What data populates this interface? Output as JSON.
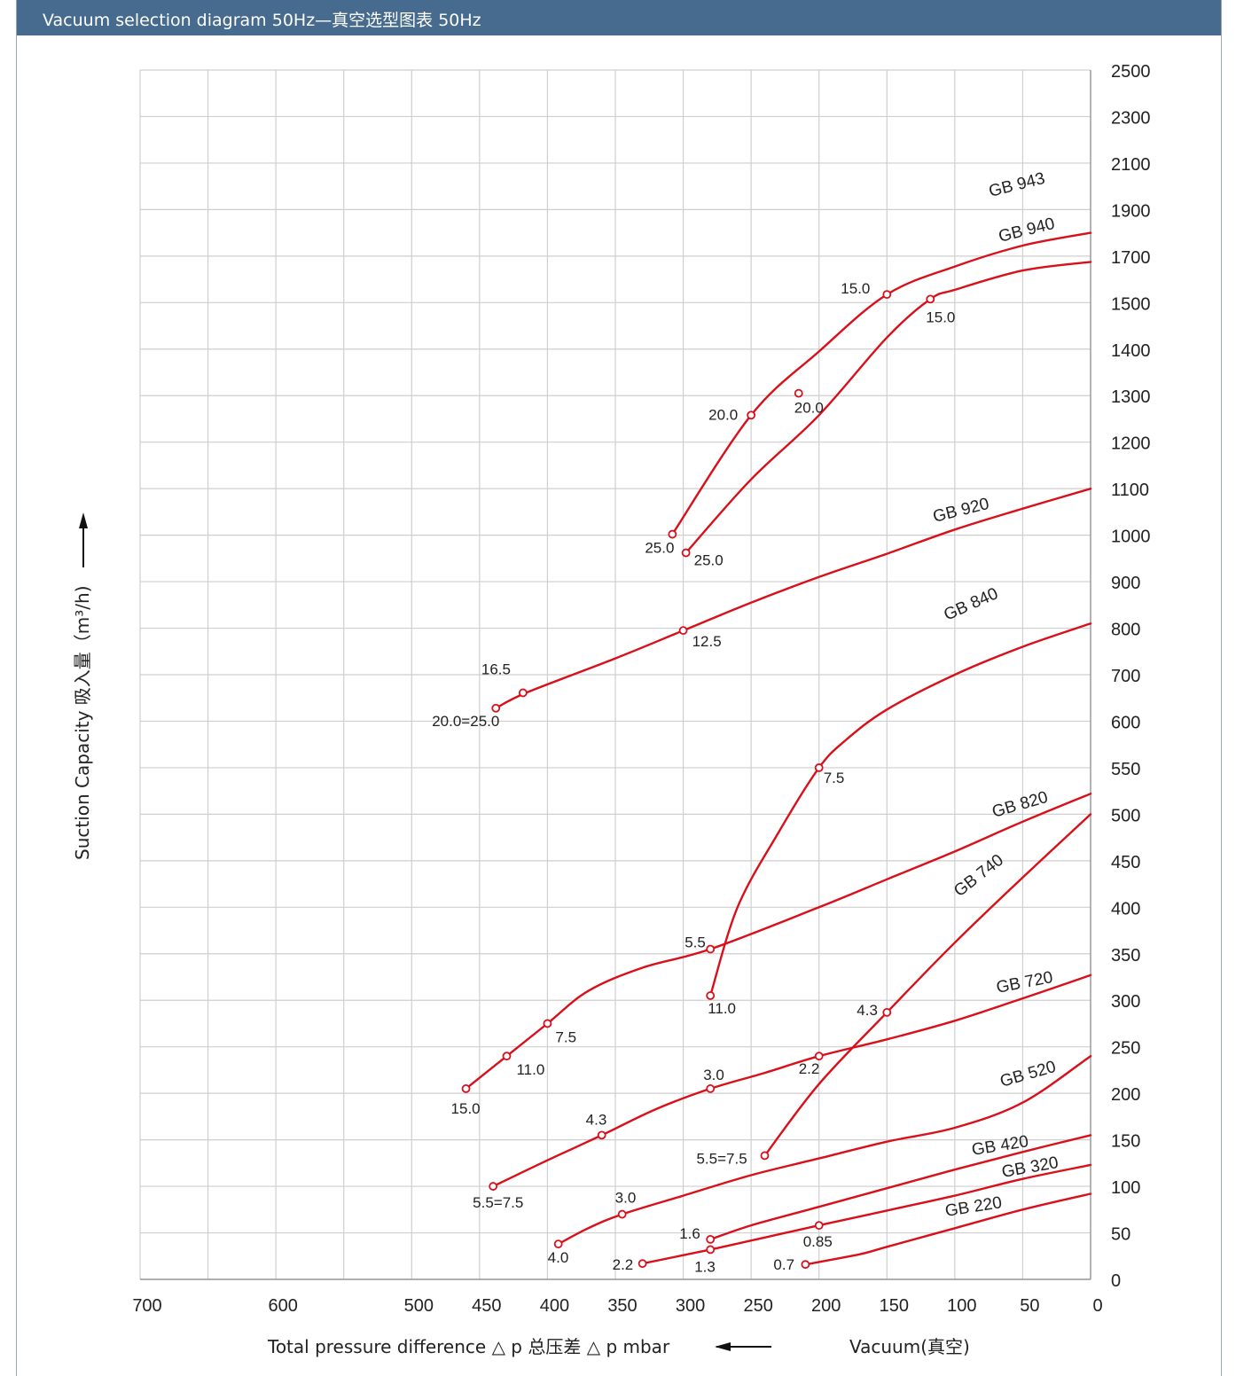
{
  "header": {
    "title": "Vacuum selection diagram 50Hz—真空选型图表 50Hz"
  },
  "axes": {
    "x_title": "Total pressure difference  △ p  总压差  △ p  mbar",
    "x_right_title": "Vacuum(真空)",
    "y_title": "Suction Capacity 吸入量（m³/h)"
  },
  "chart_data": {
    "type": "line",
    "title": "Vacuum selection diagram 50Hz—真空选型图表 50Hz",
    "xlabel": "Total pressure difference △ p 总压差 △ p mbar",
    "ylabel": "Suction Capacity 吸入量（m³/h)",
    "xlim": [
      700,
      0
    ],
    "x_ticks": [
      700,
      650,
      600,
      550,
      500,
      450,
      400,
      350,
      300,
      250,
      200,
      150,
      100,
      50,
      0
    ],
    "x_tick_labels": [
      "700",
      "",
      "600",
      "",
      "500",
      "450",
      "400",
      "350",
      "300",
      "250",
      "200",
      "150",
      "100",
      "50",
      "0"
    ],
    "y_ticks": [
      0,
      50,
      100,
      150,
      200,
      250,
      300,
      350,
      400,
      450,
      500,
      550,
      600,
      700,
      800,
      900,
      1000,
      1100,
      1200,
      1300,
      1400,
      1500,
      1700,
      1900,
      2100,
      2300,
      2500
    ],
    "grid": true,
    "series": [
      {
        "name": "GB 943",
        "points": [
          [
            308,
            1002
          ],
          [
            250,
            1258
          ],
          [
            200,
            1395
          ],
          [
            150,
            1535
          ],
          [
            100,
            1655
          ],
          [
            50,
            1745
          ],
          [
            0,
            1800
          ]
        ],
        "markers": [
          {
            "x": 308,
            "y": 1002,
            "label": "25.0"
          },
          {
            "x": 250,
            "y": 1258,
            "label": "20.0"
          },
          {
            "x": 150,
            "y": 1535,
            "label": "15.0"
          }
        ]
      },
      {
        "name": "GB 940",
        "points": [
          [
            298,
            962
          ],
          [
            250,
            1120
          ],
          [
            200,
            1258
          ],
          [
            150,
            1425
          ],
          [
            118,
            1515
          ],
          [
            100,
            1555
          ],
          [
            50,
            1638
          ],
          [
            0,
            1675
          ]
        ],
        "markers": [
          {
            "x": 298,
            "y": 962,
            "label": "25.0"
          },
          {
            "x": 215,
            "y": 1305,
            "label": "20.0"
          },
          {
            "x": 118,
            "y": 1515,
            "label": "15.0"
          }
        ]
      },
      {
        "name": "GB 920",
        "points": [
          [
            438,
            628
          ],
          [
            415,
            662
          ],
          [
            350,
            735
          ],
          [
            300,
            795
          ],
          [
            250,
            855
          ],
          [
            200,
            910
          ],
          [
            150,
            960
          ],
          [
            100,
            1012
          ],
          [
            50,
            1057
          ],
          [
            0,
            1100
          ]
        ],
        "markers": [
          {
            "x": 438,
            "y": 628,
            "label": "20.0=25.0"
          },
          {
            "x": 418,
            "y": 661,
            "label": "16.5"
          },
          {
            "x": 300,
            "y": 795,
            "label": "12.5"
          }
        ]
      },
      {
        "name": "GB 840",
        "points": [
          [
            280,
            305
          ],
          [
            260,
            400
          ],
          [
            230,
            480
          ],
          [
            200,
            550
          ],
          [
            180,
            580
          ],
          [
            150,
            625
          ],
          [
            100,
            700
          ],
          [
            50,
            760
          ],
          [
            0,
            810
          ]
        ],
        "markers": [
          {
            "x": 280,
            "y": 305,
            "label": "11.0"
          },
          {
            "x": 200,
            "y": 550,
            "label": "7.5"
          }
        ]
      },
      {
        "name": "GB 820",
        "points": [
          [
            460,
            205
          ],
          [
            430,
            240
          ],
          [
            400,
            275
          ],
          [
            370,
            310
          ],
          [
            330,
            335
          ],
          [
            280,
            355
          ],
          [
            200,
            400
          ],
          [
            150,
            430
          ],
          [
            100,
            460
          ],
          [
            50,
            492
          ],
          [
            0,
            522
          ]
        ],
        "markers": [
          {
            "x": 460,
            "y": 205,
            "label": "15.0"
          },
          {
            "x": 430,
            "y": 240,
            "label": "11.0"
          },
          {
            "x": 400,
            "y": 275,
            "label": "7.5"
          },
          {
            "x": 280,
            "y": 355,
            "label": "5.5"
          }
        ]
      },
      {
        "name": "GB 740",
        "points": [
          [
            240,
            133
          ],
          [
            200,
            210
          ],
          [
            150,
            287
          ],
          [
            100,
            362
          ],
          [
            50,
            432
          ],
          [
            0,
            500
          ]
        ],
        "markers": [
          {
            "x": 240,
            "y": 133,
            "label": "5.5=7.5"
          },
          {
            "x": 150,
            "y": 287,
            "label": "4.3"
          }
        ]
      },
      {
        "name": "GB 720",
        "points": [
          [
            440,
            100
          ],
          [
            400,
            128
          ],
          [
            360,
            155
          ],
          [
            320,
            183
          ],
          [
            280,
            205
          ],
          [
            240,
            222
          ],
          [
            200,
            240
          ],
          [
            150,
            258
          ],
          [
            100,
            278
          ],
          [
            50,
            302
          ],
          [
            0,
            327
          ]
        ],
        "markers": [
          {
            "x": 440,
            "y": 100,
            "label": "5.5=7.5"
          },
          {
            "x": 360,
            "y": 155,
            "label": "4.3"
          },
          {
            "x": 280,
            "y": 205,
            "label": "3.0"
          },
          {
            "x": 200,
            "y": 240,
            "label": "2.2"
          }
        ]
      },
      {
        "name": "GB 520",
        "points": [
          [
            392,
            38
          ],
          [
            370,
            55
          ],
          [
            345,
            70
          ],
          [
            300,
            90
          ],
          [
            250,
            112
          ],
          [
            200,
            130
          ],
          [
            150,
            148
          ],
          [
            100,
            163
          ],
          [
            50,
            190
          ],
          [
            0,
            240
          ]
        ],
        "markers": [
          {
            "x": 392,
            "y": 38,
            "label": "4.0"
          },
          {
            "x": 345,
            "y": 70,
            "label": "3.0"
          }
        ]
      },
      {
        "name": "GB 420",
        "points": [
          [
            280,
            43
          ],
          [
            250,
            58
          ],
          [
            200,
            78
          ],
          [
            150,
            98
          ],
          [
            100,
            118
          ],
          [
            50,
            137
          ],
          [
            0,
            155
          ]
        ],
        "markers": [
          {
            "x": 280,
            "y": 43,
            "label": "1.6"
          }
        ]
      },
      {
        "name": "GB 320",
        "points": [
          [
            330,
            17
          ],
          [
            280,
            32
          ],
          [
            240,
            45
          ],
          [
            200,
            58
          ],
          [
            150,
            74
          ],
          [
            100,
            90
          ],
          [
            50,
            108
          ],
          [
            0,
            123
          ]
        ],
        "markers": [
          {
            "x": 330,
            "y": 17,
            "label": "2.2"
          },
          {
            "x": 280,
            "y": 32,
            "label": "1.3"
          },
          {
            "x": 200,
            "y": 58,
            "label": "0.85"
          }
        ]
      },
      {
        "name": "GB 220",
        "points": [
          [
            210,
            16
          ],
          [
            170,
            27
          ],
          [
            150,
            35
          ],
          [
            100,
            55
          ],
          [
            50,
            75
          ],
          [
            0,
            92
          ]
        ],
        "markers": [
          {
            "x": 210,
            "y": 16,
            "label": "0.7"
          }
        ]
      }
    ]
  },
  "style": {
    "curve_color": "#d90f1a",
    "grid_color": "#cfcfcf",
    "header_color": "#466b8e"
  }
}
